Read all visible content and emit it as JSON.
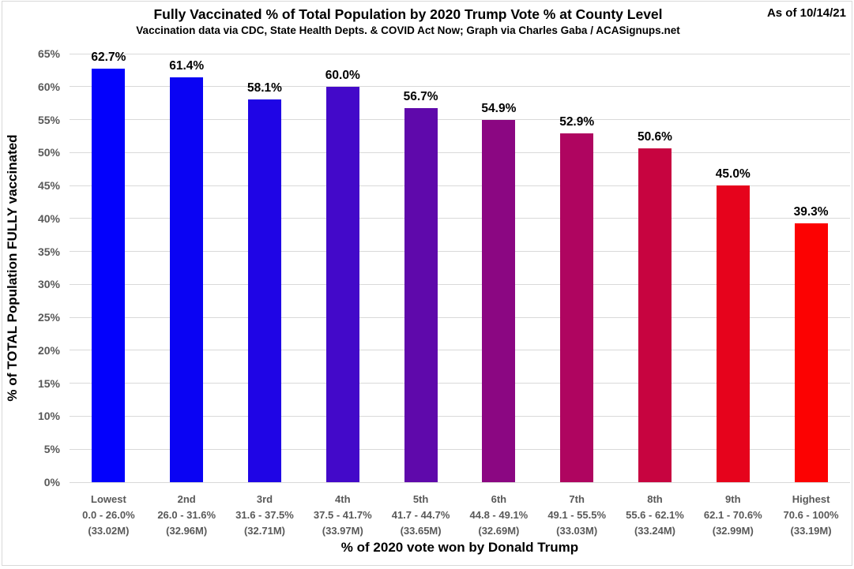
{
  "chart_data": {
    "type": "bar",
    "title": "Fully Vaccinated % of Total Population by 2020 Trump Vote % at County Level",
    "subtitle": "Vaccination data via CDC, State Health Depts. & COVID Act Now; Graph via Charles Gaba / ACASignups.net",
    "as_of": "As of 10/14/21",
    "xlabel": "% of 2020 vote won by Donald Trump",
    "ylabel": "% of TOTAL Population FULLY vaccinated",
    "ylim": [
      0,
      65
    ],
    "ytick_step": 5,
    "ytick_labels": [
      "0%",
      "5%",
      "10%",
      "15%",
      "20%",
      "25%",
      "30%",
      "35%",
      "40%",
      "45%",
      "50%",
      "55%",
      "60%",
      "65%"
    ],
    "grid": "horizontal-only",
    "legend": "none",
    "gridline_color": "#d9d9d9",
    "axis_text_color": "#595959",
    "categories": [
      "Lowest",
      "2nd",
      "3rd",
      "4th",
      "5th",
      "6th",
      "7th",
      "8th",
      "9th",
      "Highest"
    ],
    "category_ranges": [
      "0.0 - 26.0%",
      "26.0 - 31.6%",
      "31.6 - 37.5%",
      "37.5 - 41.7%",
      "41.7 - 44.7%",
      "44.8 - 49.1%",
      "49.1 - 55.5%",
      "55.6 - 62.1%",
      "62.1 - 70.6%",
      "70.6 - 100%"
    ],
    "category_populations": [
      "(33.02M)",
      "(32.96M)",
      "(32.71M)",
      "(33.97M)",
      "(33.65M)",
      "(32.69M)",
      "(33.03M)",
      "(33.24M)",
      "(32.99M)",
      "(33.19M)"
    ],
    "values": [
      62.7,
      61.4,
      58.1,
      60.0,
      56.7,
      54.9,
      52.9,
      50.6,
      45.0,
      39.3
    ],
    "value_labels": [
      "62.7%",
      "61.4%",
      "58.1%",
      "60.0%",
      "56.7%",
      "54.9%",
      "52.9%",
      "50.6%",
      "45.0%",
      "39.3%"
    ],
    "bar_colors": [
      "#0301fc",
      "#0a03f3",
      "#1f05e5",
      "#4309c9",
      "#5f09ab",
      "#8b0782",
      "#af0560",
      "#c70440",
      "#e6031c",
      "#fc0202"
    ]
  }
}
